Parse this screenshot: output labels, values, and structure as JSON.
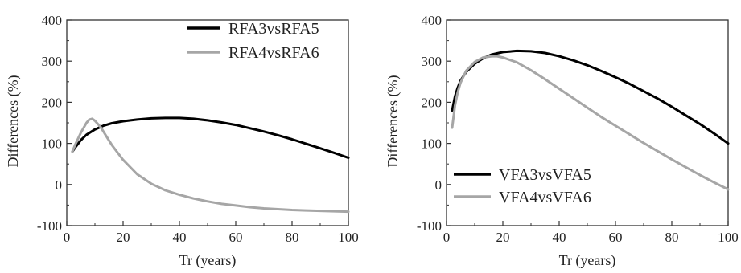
{
  "chart_data": [
    {
      "type": "line",
      "xlabel": "Tr (years)",
      "ylabel": "Differences (%)",
      "xlim": [
        0,
        100
      ],
      "ylim": [
        -100,
        400
      ],
      "xticks": [
        "0",
        "20",
        "40",
        "60",
        "80",
        "100"
      ],
      "yticks": [
        "-100",
        "0",
        "100",
        "200",
        "300",
        "400"
      ],
      "grid": false,
      "legend_position": "top-right",
      "series": [
        {
          "name": "RFA3vsRFA5",
          "color": "#000000",
          "x": [
            2,
            3,
            5,
            7,
            10,
            13,
            16,
            20,
            25,
            30,
            35,
            40,
            45,
            50,
            55,
            60,
            65,
            70,
            75,
            80,
            85,
            90,
            95,
            100
          ],
          "y": [
            80,
            90,
            108,
            121,
            134,
            143,
            149,
            154,
            158,
            161,
            162,
            162,
            160,
            156,
            151,
            145,
            137,
            129,
            120,
            110,
            99,
            88,
            77,
            65
          ]
        },
        {
          "name": "RFA4vsRFA6",
          "color": "#a6a6a6",
          "x": [
            2,
            3,
            5,
            7,
            8,
            9,
            10,
            12,
            14,
            16,
            20,
            25,
            30,
            35,
            40,
            45,
            50,
            55,
            60,
            65,
            70,
            75,
            80,
            85,
            90,
            95,
            100
          ],
          "y": [
            80,
            97,
            126,
            150,
            158,
            160,
            155,
            140,
            118,
            96,
            60,
            25,
            2,
            -14,
            -25,
            -34,
            -41,
            -47,
            -51,
            -55,
            -58,
            -60,
            -62,
            -63,
            -64,
            -65,
            -66
          ]
        }
      ]
    },
    {
      "type": "line",
      "xlabel": "Tr (years)",
      "ylabel": "Differences (%)",
      "xlim": [
        0,
        100
      ],
      "ylim": [
        -100,
        400
      ],
      "xticks": [
        "0",
        "20",
        "40",
        "60",
        "80",
        "100"
      ],
      "yticks": [
        "-100",
        "0",
        "100",
        "200",
        "300",
        "400"
      ],
      "grid": false,
      "legend_position": "bottom-left",
      "series": [
        {
          "name": "VFA3vsVFA5",
          "color": "#000000",
          "x": [
            2,
            3,
            4,
            5,
            7,
            10,
            13,
            16,
            20,
            25,
            30,
            35,
            40,
            45,
            50,
            55,
            60,
            65,
            70,
            75,
            80,
            85,
            90,
            95,
            100
          ],
          "y": [
            180,
            214,
            236,
            253,
            274,
            294,
            307,
            316,
            322,
            325,
            324,
            320,
            312,
            302,
            290,
            276,
            261,
            245,
            227,
            209,
            189,
            168,
            147,
            124,
            100
          ]
        },
        {
          "name": "VFA4vsVFA6",
          "color": "#a6a6a6",
          "x": [
            2,
            3,
            4,
            5,
            7,
            10,
            13,
            16,
            18,
            20,
            25,
            30,
            35,
            40,
            45,
            50,
            55,
            60,
            65,
            70,
            75,
            80,
            85,
            90,
            95,
            100
          ],
          "y": [
            138,
            192,
            225,
            248,
            277,
            298,
            309,
            312,
            312,
            309,
            297,
            278,
            256,
            233,
            210,
            187,
            164,
            143,
            122,
            101,
            81,
            61,
            42,
            23,
            5,
            -12
          ]
        }
      ]
    }
  ]
}
